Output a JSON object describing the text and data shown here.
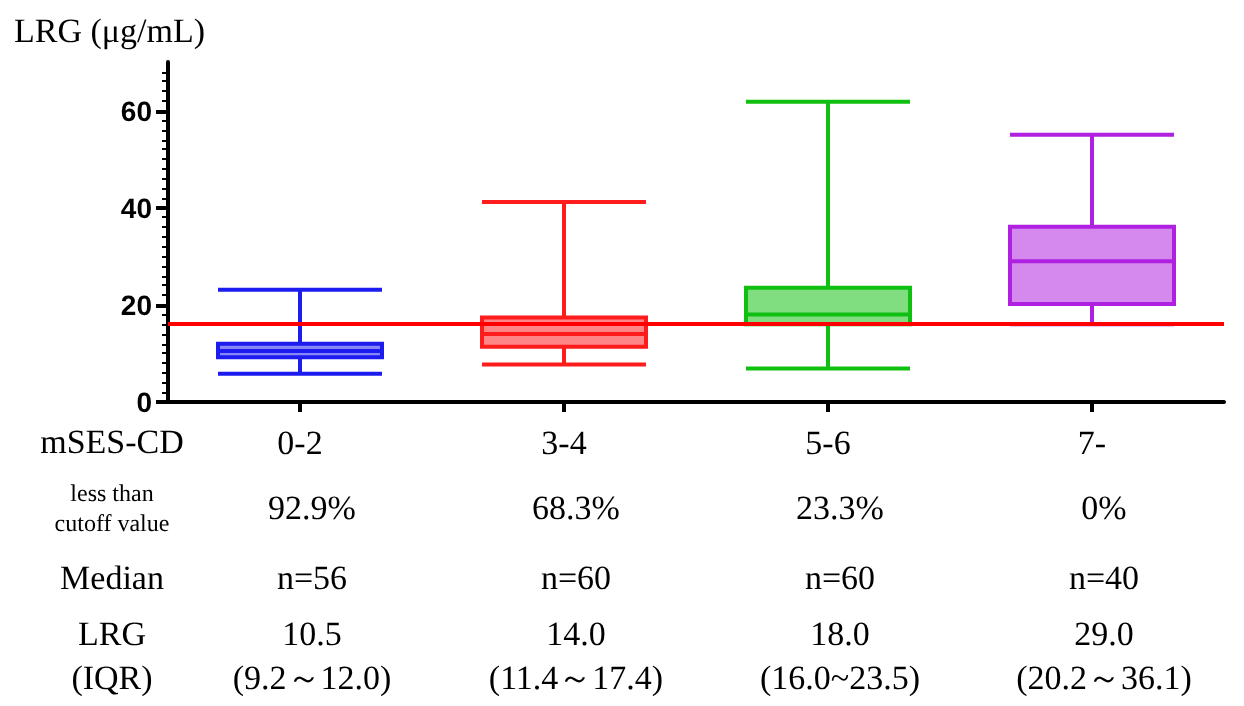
{
  "chart_data": {
    "type": "box",
    "ylabel": "LRG (μg/mL)",
    "xlabel": "mSES-CD",
    "categories": [
      "0-2",
      "3-4",
      "5-6",
      "7-"
    ],
    "boxes": [
      {
        "low": 5.8,
        "q1": 9.2,
        "median": 10.5,
        "q3": 12.0,
        "high": 23.1
      },
      {
        "low": 7.7,
        "q1": 11.4,
        "median": 14.0,
        "q3": 17.4,
        "high": 41.2
      },
      {
        "low": 6.9,
        "q1": 16.0,
        "median": 18.0,
        "q3": 23.5,
        "high": 61.8
      },
      {
        "low": 16.0,
        "q1": 20.2,
        "median": 29.0,
        "q3": 36.1,
        "high": 55.0
      }
    ],
    "colors": [
      "#1c1cf0",
      "#ff1c1c",
      "#10c010",
      "#b020e0"
    ],
    "ylim": [
      0,
      70
    ],
    "yticks": [
      0,
      20,
      40,
      60
    ],
    "ref_lines": [
      {
        "axis": "y",
        "value": 16,
        "color": "#ff0000"
      }
    ],
    "annotations": [
      "less than\ncutoff value",
      "92.9%",
      "68.3%",
      "23.3%",
      "0%",
      "Median",
      "n=56",
      "n=60",
      "n=60",
      "n=40",
      "LRG\n(IQR)",
      "10.5\n(9.2～12.0)",
      "14.0\n(11.4～17.4)",
      "18.0\n(16.0~23.5)",
      "29.0\n(20.2～36.1)"
    ],
    "grid": false
  }
}
